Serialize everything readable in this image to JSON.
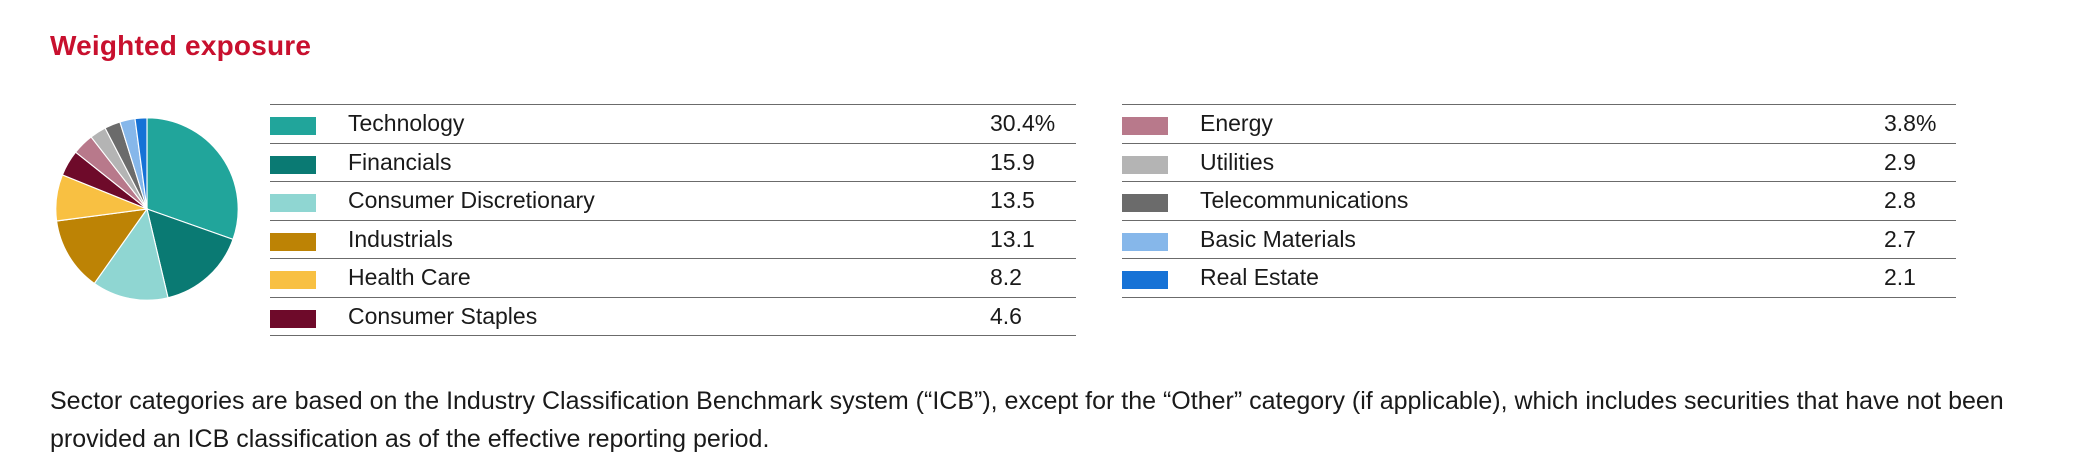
{
  "title": "Weighted exposure",
  "colors": {
    "title": "#c8102e",
    "rule": "#6b6b6b"
  },
  "chart_data": {
    "type": "pie",
    "categories": [
      "Technology",
      "Financials",
      "Consumer Discretionary",
      "Industrials",
      "Health Care",
      "Consumer Staples",
      "Energy",
      "Utilities",
      "Telecommunications",
      "Basic Materials",
      "Real Estate"
    ],
    "values": [
      30.4,
      15.9,
      13.5,
      13.1,
      8.2,
      4.6,
      3.8,
      2.9,
      2.8,
      2.7,
      2.1
    ],
    "colors": [
      "#21a59b",
      "#0a7a73",
      "#8fd6d2",
      "#bd8305",
      "#f8c042",
      "#6e0a2a",
      "#b8798b",
      "#b4b4b4",
      "#6b6b6b",
      "#86b7ea",
      "#1672d6"
    ],
    "start_angle_deg": 0,
    "direction": "clockwise",
    "unit": "%"
  },
  "legend_left": [
    {
      "label": "Technology",
      "value": "30.4%",
      "color": "#21a59b"
    },
    {
      "label": "Financials",
      "value": "15.9",
      "color": "#0a7a73"
    },
    {
      "label": "Consumer Discretionary",
      "value": "13.5",
      "color": "#8fd6d2"
    },
    {
      "label": "Industrials",
      "value": "13.1",
      "color": "#bd8305"
    },
    {
      "label": "Health Care",
      "value": "8.2",
      "color": "#f8c042"
    },
    {
      "label": "Consumer Staples",
      "value": "4.6",
      "color": "#6e0a2a"
    }
  ],
  "legend_right": [
    {
      "label": "Energy",
      "value": "3.8%",
      "color": "#b8798b"
    },
    {
      "label": "Utilities",
      "value": "2.9",
      "color": "#b4b4b4"
    },
    {
      "label": "Telecommunications",
      "value": "2.8",
      "color": "#6b6b6b"
    },
    {
      "label": "Basic Materials",
      "value": "2.7",
      "color": "#86b7ea"
    },
    {
      "label": "Real Estate",
      "value": "2.1",
      "color": "#1672d6"
    }
  ],
  "footnote": "Sector categories are based on the Industry Classification Benchmark system (“ICB”), except for the “Other” category (if applicable), which includes securities that have not been provided an ICB classification as of the effective reporting period."
}
